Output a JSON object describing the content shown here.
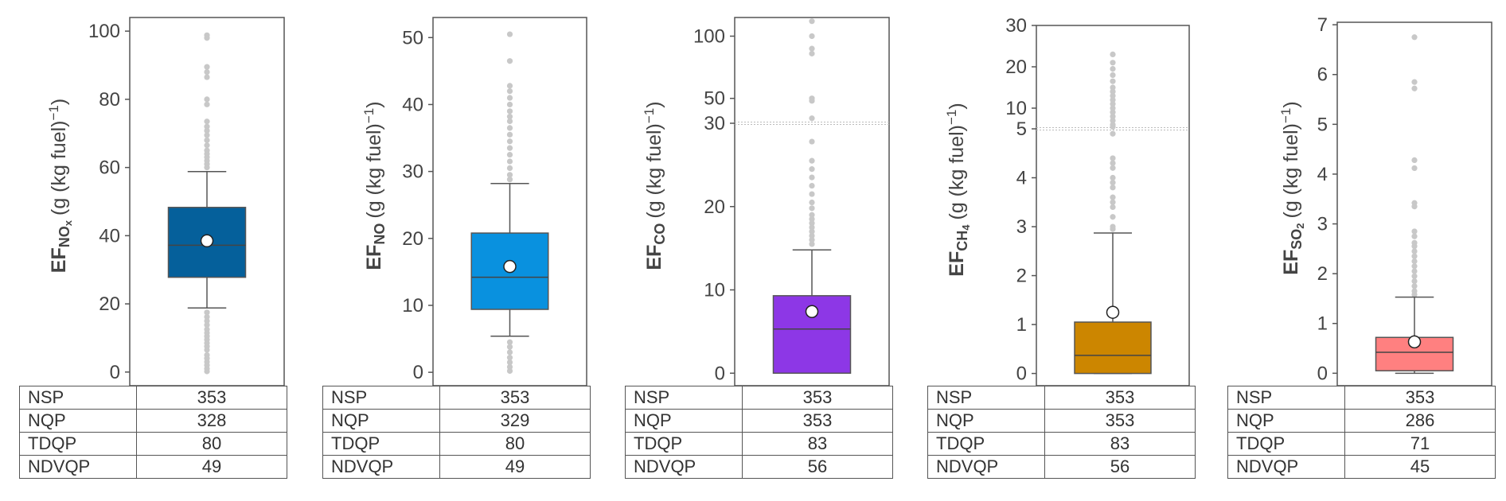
{
  "chart_data": [
    {
      "type": "box",
      "ylabel_main": "EF",
      "ylabel_sub": "NO",
      "ylabel_sub2": "x",
      "ylabel_unit": "(g (kg fuel)",
      "ylabel_exp": "−1",
      "ylabel_close": ")",
      "color": "#05609b",
      "ylim": [
        -4,
        104
      ],
      "yticks": [
        0,
        20,
        40,
        60,
        80,
        100
      ],
      "whisker_low": 18.8,
      "q1": 27.8,
      "median": 37.2,
      "q3": 48.3,
      "whisker_high": 58.8,
      "mean": 38.5,
      "outliers": [
        98.8,
        98.0,
        89.5,
        88.0,
        86.5,
        80.0,
        78.5,
        73.5,
        72.0,
        70.8,
        69.5,
        68.0,
        66.5,
        65.0,
        64.0,
        63.0,
        62.0,
        61.0,
        60.0,
        17.5,
        16.2,
        15.0,
        13.8,
        12.5,
        11.5,
        10.5,
        9.5,
        8.5,
        7.5,
        6.5,
        5.0,
        4.0,
        3.0,
        2.0,
        1.0,
        0.2
      ],
      "table": [
        {
          "label": "NSP",
          "value": "353"
        },
        {
          "label": "NQP",
          "value": "328"
        },
        {
          "label": "TDQP",
          "value": "80"
        },
        {
          "label": "NDVQP",
          "value": "49"
        }
      ]
    },
    {
      "type": "box",
      "ylabel_main": "EF",
      "ylabel_sub": "NO",
      "ylabel_sub2": "",
      "ylabel_unit": "(g (kg fuel)",
      "ylabel_exp": "−1",
      "ylabel_close": ")",
      "color": "#0991df",
      "ylim": [
        -2,
        53
      ],
      "yticks": [
        0,
        10,
        20,
        30,
        40,
        50
      ],
      "whisker_low": 5.4,
      "q1": 9.4,
      "median": 14.2,
      "q3": 20.8,
      "whisker_high": 28.2,
      "mean": 15.8,
      "outliers": [
        50.5,
        46.5,
        42.8,
        42.0,
        41.0,
        40.0,
        39.0,
        38.2,
        37.5,
        36.5,
        35.5,
        34.5,
        33.5,
        32.5,
        31.5,
        30.5,
        29.5,
        28.8,
        4.5,
        3.8,
        3.0,
        2.2,
        1.5,
        0.8,
        0.2
      ],
      "table": [
        {
          "label": "NSP",
          "value": "353"
        },
        {
          "label": "NQP",
          "value": "329"
        },
        {
          "label": "TDQP",
          "value": "80"
        },
        {
          "label": "NDVQP",
          "value": "49"
        }
      ]
    },
    {
      "type": "box_broken",
      "ylabel_main": "EF",
      "ylabel_sub": "CO",
      "ylabel_sub2": "",
      "ylabel_unit": "(g (kg fuel)",
      "ylabel_exp": "−1",
      "ylabel_close": ")",
      "color": "#8d37e6",
      "ylim_low": [
        -1.5,
        30
      ],
      "ylim_high": [
        30,
        115
      ],
      "yticks_low": [
        0,
        10,
        20,
        30
      ],
      "yticks_high": [
        50,
        100
      ],
      "whisker_low": 0,
      "q1": 0,
      "median": 5.3,
      "q3": 9.3,
      "whisker_high": 14.8,
      "mean": 7.4,
      "outliers": [
        112,
        100,
        90,
        86,
        50,
        48,
        34,
        27.8,
        25.5,
        24.5,
        23.5,
        22.5,
        21.5,
        20.5,
        19.8,
        19.0,
        18.5,
        18.0,
        17.5,
        17.0,
        16.5,
        16.0,
        15.5
      ],
      "table": [
        {
          "label": "NSP",
          "value": "353"
        },
        {
          "label": "NQP",
          "value": "353"
        },
        {
          "label": "TDQP",
          "value": "83"
        },
        {
          "label": "NDVQP",
          "value": "56"
        }
      ]
    },
    {
      "type": "box_broken",
      "ylabel_main": "EF",
      "ylabel_sub": "CH",
      "ylabel_sub2": "4",
      "ylabel_unit": "(g (kg fuel)",
      "ylabel_exp": "−1",
      "ylabel_close": ")",
      "color": "#cc8600",
      "ylim_low": [
        -0.25,
        5
      ],
      "ylim_high": [
        5,
        30
      ],
      "yticks_low": [
        0,
        1,
        2,
        3,
        4,
        5
      ],
      "yticks_high": [
        10,
        20,
        30
      ],
      "whisker_low": 0,
      "q1": 0,
      "median": 0.37,
      "q3": 1.05,
      "whisker_high": 2.87,
      "mean": 1.25,
      "outliers": [
        23,
        21,
        19.5,
        18,
        16.5,
        15,
        14,
        13,
        12,
        11,
        10,
        9,
        8,
        7,
        6,
        5.5,
        4.9,
        4.4,
        4.3,
        4.2,
        4.0,
        3.9,
        3.8,
        3.6,
        3.5,
        3.4,
        3.2,
        3.0,
        2.95
      ],
      "table": [
        {
          "label": "NSP",
          "value": "353"
        },
        {
          "label": "NQP",
          "value": "353"
        },
        {
          "label": "TDQP",
          "value": "83"
        },
        {
          "label": "NDVQP",
          "value": "56"
        }
      ]
    },
    {
      "type": "box",
      "ylabel_main": "EF",
      "ylabel_sub": "SO",
      "ylabel_sub2": "2",
      "ylabel_unit": "(g (kg fuel)",
      "ylabel_exp": "−1",
      "ylabel_close": ")",
      "color": "#ff8080",
      "ylim": [
        -0.25,
        7.05
      ],
      "yticks": [
        0,
        1,
        2,
        3,
        4,
        5,
        6,
        7
      ],
      "whisker_low": 0,
      "q1": 0.05,
      "median": 0.42,
      "q3": 0.72,
      "whisker_high": 1.53,
      "mean": 0.63,
      "outliers": [
        6.75,
        5.85,
        5.72,
        4.28,
        4.12,
        3.42,
        3.35,
        2.85,
        2.75,
        2.62,
        2.55,
        2.45,
        2.35,
        2.25,
        2.15,
        2.05,
        1.95,
        1.85,
        1.75,
        1.65,
        1.58
      ],
      "table": [
        {
          "label": "NSP",
          "value": "353"
        },
        {
          "label": "NQP",
          "value": "286"
        },
        {
          "label": "TDQP",
          "value": "71"
        },
        {
          "label": "NDVQP",
          "value": "45"
        }
      ]
    }
  ]
}
